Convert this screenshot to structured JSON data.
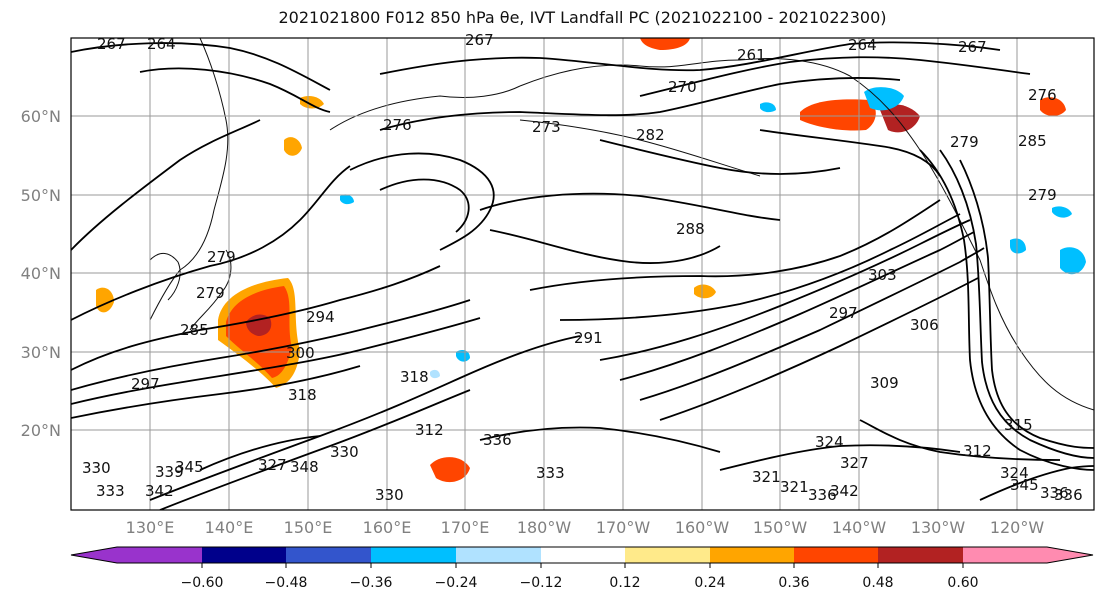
{
  "title": "2021021800 F012 850 hPa θe, IVT Landfall PC (2021022100 - 2021022300)",
  "lat_labels": [
    "60°N",
    "50°N",
    "40°N",
    "30°N",
    "20°N"
  ],
  "lon_labels": [
    "130°E",
    "140°E",
    "150°E",
    "160°E",
    "170°E",
    "180°W",
    "170°W",
    "160°W",
    "150°W",
    "140°W",
    "130°W",
    "120°W"
  ],
  "colorbar": {
    "colors": [
      "#9933cc",
      "#00008b",
      "#3355cc",
      "#00bfff",
      "#b0e2ff",
      "#ffffff",
      "#ffea8a",
      "#ffa500",
      "#ff4500",
      "#b22222",
      "#ff8bb0"
    ],
    "tick_labels": [
      "−0.60",
      "−0.48",
      "−0.36",
      "−0.24",
      "−0.12",
      "0.12",
      "0.24",
      "0.36",
      "0.48",
      "0.60"
    ]
  },
  "contour_labels": [
    "267",
    "264",
    "267",
    "261",
    "264",
    "267",
    "270",
    "273",
    "276",
    "282",
    "279",
    "276",
    "285",
    "279",
    "279",
    "279",
    "288",
    "285",
    "294",
    "291",
    "297",
    "300",
    "303",
    "306",
    "309",
    "318",
    "297",
    "312",
    "315",
    "321",
    "324",
    "327",
    "330",
    "333",
    "336",
    "339",
    "342",
    "345",
    "348",
    "312",
    "330",
    "336",
    "336",
    "330",
    "342",
    "345",
    "318",
    "321",
    "324",
    "327",
    "333",
    "336"
  ]
}
